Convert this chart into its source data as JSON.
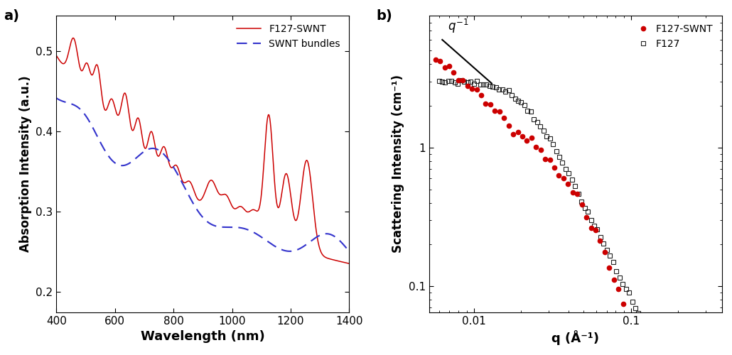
{
  "panel_a": {
    "xlabel": "Wavelength (nm)",
    "ylabel": "Absorption Intensity (a.u.)",
    "xlim": [
      400,
      1400
    ],
    "ylim": [
      0.175,
      0.545
    ],
    "yticks": [
      0.2,
      0.3,
      0.4,
      0.5
    ],
    "xticks": [
      400,
      600,
      800,
      1000,
      1200,
      1400
    ],
    "legend": [
      "F127-SWNT",
      "SWNT bundles"
    ],
    "line1_color": "#cc0000",
    "line2_color": "#3333cc"
  },
  "panel_b": {
    "xlabel": "q (Å⁻¹)",
    "ylabel": "Scattering Intensity (cm⁻¹)",
    "xlim": [
      0.0052,
      0.38
    ],
    "ylim": [
      0.065,
      9.0
    ],
    "legend": [
      "F127-SWNT",
      "F127"
    ],
    "marker1_color": "#cc0000",
    "marker2_color": "#222222"
  }
}
